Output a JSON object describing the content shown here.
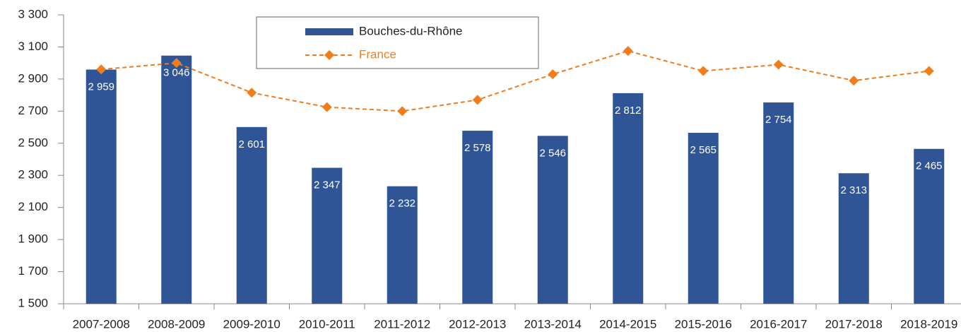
{
  "chart_data": {
    "type": "bar",
    "categories": [
      "2007-2008",
      "2008-2009",
      "2009-2010",
      "2010-2011",
      "2011-2012",
      "2012-2013",
      "2013-2014",
      "2014-2015",
      "2015-2016",
      "2016-2017",
      "2017-2018",
      "2018-2019"
    ],
    "series": [
      {
        "name": "Bouches-du-Rhône",
        "type": "bar",
        "color": "#2f5597",
        "values": [
          2959,
          3046,
          2601,
          2347,
          2232,
          2578,
          2546,
          2812,
          2565,
          2754,
          2313,
          2465
        ],
        "value_labels": [
          "2 959",
          "3 046",
          "2 601",
          "2 347",
          "2 232",
          "2 578",
          "2 546",
          "2 812",
          "2 565",
          "2 754",
          "2 313",
          "2 465"
        ]
      },
      {
        "name": "France",
        "type": "line",
        "color": "#f07c1a",
        "values": [
          2960,
          3000,
          2815,
          2725,
          2700,
          2770,
          2930,
          3075,
          2950,
          2990,
          2890,
          2950
        ]
      }
    ],
    "ylim": [
      1500,
      3300
    ],
    "yticks": [
      {
        "value": 1500,
        "label": "1 500"
      },
      {
        "value": 1700,
        "label": "1 700"
      },
      {
        "value": 1900,
        "label": "1 900"
      },
      {
        "value": 2100,
        "label": "2 100"
      },
      {
        "value": 2300,
        "label": "2 300"
      },
      {
        "value": 2500,
        "label": "2 500"
      },
      {
        "value": 2700,
        "label": "2 700"
      },
      {
        "value": 2900,
        "label": "2 900"
      },
      {
        "value": 3100,
        "label": "3 100"
      },
      {
        "value": 3300,
        "label": "3 300"
      }
    ],
    "grid": false,
    "legend": "top"
  }
}
